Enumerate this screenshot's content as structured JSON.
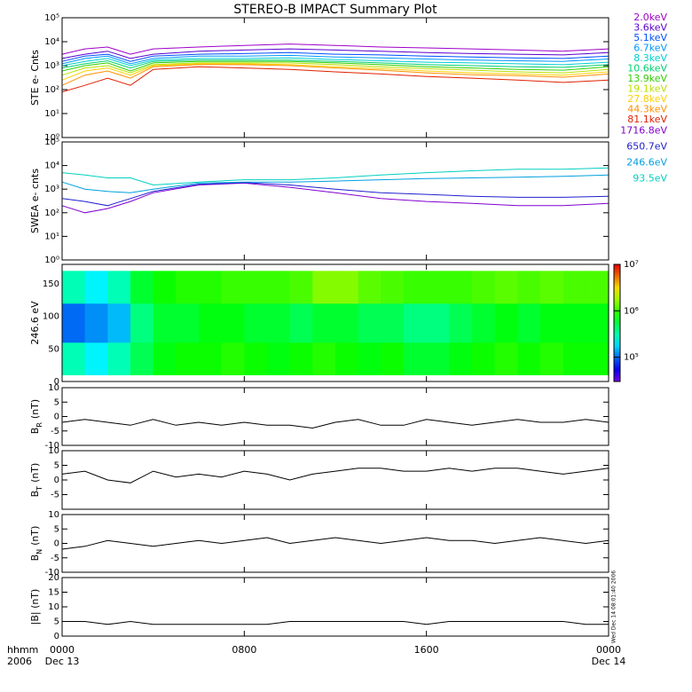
{
  "title": "STEREO-B IMPACT Summary Plot",
  "stamp": "Wed Dec 14 08:01:40 2006",
  "x_axis": {
    "label": "hhmm",
    "year": "2006",
    "xlim": [
      0,
      24
    ],
    "xticks": [
      {
        "value": 0,
        "label": "0000"
      },
      {
        "value": 8,
        "label": "0800"
      },
      {
        "value": 16,
        "label": "1600"
      },
      {
        "value": 24,
        "label": "0000"
      }
    ],
    "dates": [
      {
        "value": 0,
        "label": "Dec 13"
      },
      {
        "value": 24,
        "label": "Dec 14"
      }
    ]
  },
  "chart_data": [
    {
      "type": "line",
      "log_scale": true,
      "ylabel": "STE e- Cnts",
      "ylim": [
        1,
        100000
      ],
      "yticks": [
        {
          "value": 1,
          "label": "10⁰"
        },
        {
          "value": 10,
          "label": "10¹"
        },
        {
          "value": 100,
          "label": "10²"
        },
        {
          "value": 1000,
          "label": "10³"
        },
        {
          "value": 10000,
          "label": "10⁴"
        },
        {
          "value": 100000,
          "label": "10⁵"
        }
      ],
      "x": [
        0,
        1,
        2,
        3,
        4,
        6,
        8,
        10,
        12,
        14,
        16,
        18,
        20,
        22,
        24
      ],
      "series": [
        {
          "name": "2.0keV",
          "color": "#a000c8",
          "values": [
            3000,
            5000,
            6000,
            3000,
            5000,
            6000,
            7000,
            8000,
            7000,
            6000,
            5500,
            5000,
            4500,
            4000,
            5000
          ]
        },
        {
          "name": "3.6keV",
          "color": "#5a00d0",
          "values": [
            2000,
            3000,
            4000,
            2000,
            3000,
            4000,
            4500,
            5000,
            4500,
            4000,
            3500,
            3200,
            3000,
            2800,
            3500
          ]
        },
        {
          "name": "5.1keV",
          "color": "#0050ff",
          "values": [
            1500,
            2500,
            3000,
            1500,
            2500,
            3000,
            3200,
            3500,
            3000,
            2800,
            2500,
            2300,
            2100,
            2000,
            2500
          ]
        },
        {
          "name": "6.7keV",
          "color": "#0098ff",
          "values": [
            1200,
            2000,
            2500,
            1200,
            2000,
            2500,
            2500,
            2700,
            2300,
            2100,
            1900,
            1700,
            1600,
            1500,
            1900
          ]
        },
        {
          "name": "8.3keV",
          "color": "#00d0d0",
          "values": [
            1000,
            1500,
            2000,
            1000,
            1700,
            2000,
            2000,
            2100,
            1800,
            1600,
            1400,
            1300,
            1200,
            1100,
            1400
          ]
        },
        {
          "name": "10.6keV",
          "color": "#00d070",
          "values": [
            800,
            1200,
            1600,
            800,
            1500,
            1700,
            1700,
            1700,
            1500,
            1300,
            1100,
            1000,
            900,
            850,
            1100
          ]
        },
        {
          "name": "13.9keV",
          "color": "#30d000",
          "values": [
            600,
            1000,
            1300,
            600,
            1300,
            1500,
            1500,
            1500,
            1300,
            1100,
            900,
            800,
            700,
            650,
            900
          ]
        },
        {
          "name": "19.1keV",
          "color": "#b8e000",
          "values": [
            400,
            800,
            1000,
            500,
            1100,
            1300,
            1300,
            1300,
            1100,
            900,
            750,
            650,
            550,
            500,
            700
          ]
        },
        {
          "name": "27.8keV",
          "color": "#ffd000",
          "values": [
            250,
            600,
            800,
            400,
            1000,
            1200,
            1200,
            1100,
            900,
            750,
            600,
            500,
            450,
            400,
            550
          ]
        },
        {
          "name": "44.3keV",
          "color": "#ff9000",
          "values": [
            150,
            400,
            600,
            300,
            900,
            1100,
            1100,
            1000,
            800,
            650,
            500,
            420,
            380,
            330,
            450
          ]
        },
        {
          "name": "81.1keV",
          "color": "#e02000",
          "values": [
            80,
            150,
            300,
            150,
            700,
            900,
            800,
            700,
            550,
            450,
            350,
            300,
            250,
            200,
            250
          ]
        }
      ]
    },
    {
      "type": "line",
      "log_scale": true,
      "ylabel": "SWEA e- cnts",
      "ylim": [
        1,
        100000
      ],
      "yticks": [
        {
          "value": 1,
          "label": "10⁰"
        },
        {
          "value": 10,
          "label": "10¹"
        },
        {
          "value": 100,
          "label": "10²"
        },
        {
          "value": 1000,
          "label": "10³"
        },
        {
          "value": 10000,
          "label": "10⁴"
        },
        {
          "value": 100000,
          "label": "10⁵"
        }
      ],
      "x": [
        0,
        1,
        2,
        3,
        4,
        6,
        8,
        10,
        12,
        14,
        16,
        18,
        20,
        22,
        24
      ],
      "series": [
        {
          "name": "1716.8eV",
          "color": "#8000d0",
          "values": [
            200,
            100,
            150,
            300,
            700,
            1500,
            1800,
            1200,
            700,
            400,
            300,
            250,
            200,
            200,
            250
          ]
        },
        {
          "name": "650.7eV",
          "color": "#2020d0",
          "values": [
            400,
            300,
            200,
            400,
            800,
            1600,
            1900,
            1500,
            1000,
            700,
            600,
            500,
            450,
            450,
            500
          ]
        },
        {
          "name": "246.6eV",
          "color": "#00a0e0",
          "values": [
            2000,
            1000,
            800,
            700,
            1000,
            1800,
            2000,
            2000,
            2200,
            2500,
            2800,
            3000,
            3200,
            3500,
            4000
          ]
        },
        {
          "name": "93.5eV",
          "color": "#00d0c0",
          "values": [
            5000,
            4000,
            3000,
            3000,
            1500,
            2000,
            2500,
            2500,
            3000,
            4000,
            5000,
            6000,
            7000,
            7000,
            8000
          ]
        }
      ]
    },
    {
      "type": "heatmap",
      "ylabel": "246.6 eV",
      "ylim": [
        0,
        180
      ],
      "yticks": [
        0,
        50,
        100,
        150
      ],
      "x_bins": [
        0,
        1,
        2,
        3,
        4,
        5,
        6,
        7,
        8,
        9,
        10,
        11,
        12,
        13,
        14,
        15,
        16,
        17,
        18,
        19,
        20,
        21,
        22,
        23,
        24
      ],
      "y_bins": [
        10,
        60,
        120,
        170
      ],
      "values": [
        [
          300000,
          200000,
          300000,
          500000,
          700000,
          800000,
          800000,
          900000,
          800000,
          700000,
          800000,
          900000,
          800000,
          700000,
          800000,
          600000,
          600000,
          700000,
          800000,
          900000,
          800000,
          900000,
          800000,
          800000
        ],
        [
          100000,
          120000,
          150000,
          400000,
          600000,
          600000,
          700000,
          700000,
          600000,
          600000,
          500000,
          600000,
          600000,
          500000,
          500000,
          400000,
          400000,
          500000,
          600000,
          700000,
          600000,
          700000,
          700000,
          700000
        ],
        [
          300000,
          200000,
          300000,
          600000,
          800000,
          900000,
          900000,
          1000000,
          1000000,
          1000000,
          1100000,
          1500000,
          1500000,
          1200000,
          1100000,
          1000000,
          1000000,
          1000000,
          1100000,
          1200000,
          1100000,
          1200000,
          1100000,
          1100000
        ]
      ],
      "clim": [
        30000,
        10000000
      ],
      "cticks": [
        {
          "value": 100000,
          "label": "10⁵"
        },
        {
          "value": 1000000,
          "label": "10⁶"
        },
        {
          "value": 10000000,
          "label": "10⁷"
        }
      ]
    },
    {
      "type": "line",
      "ylabel": "B",
      "ylabel_sub": "R",
      "ylabel_unit": "(nT)",
      "ylim": [
        -10,
        10
      ],
      "yticks": [
        -10,
        -5,
        0,
        5,
        10
      ],
      "x": [
        0,
        1,
        2,
        3,
        4,
        5,
        6,
        7,
        8,
        9,
        10,
        11,
        12,
        13,
        14,
        15,
        16,
        17,
        18,
        19,
        20,
        21,
        22,
        23,
        24
      ],
      "series": [
        {
          "color": "#000000",
          "values": [
            -2,
            -1,
            -2,
            -3,
            -1,
            -3,
            -2,
            -3,
            -2,
            -3,
            -3,
            -4,
            -2,
            -1,
            -3,
            -3,
            -1,
            -2,
            -3,
            -2,
            -1,
            -2,
            -2,
            -1,
            -2
          ]
        }
      ]
    },
    {
      "type": "line",
      "ylabel": "B",
      "ylabel_sub": "T",
      "ylabel_unit": "(nT)",
      "ylim": [
        -10,
        10
      ],
      "yticks": [
        -5,
        0,
        5,
        10
      ],
      "x": [
        0,
        1,
        2,
        3,
        4,
        5,
        6,
        7,
        8,
        9,
        10,
        11,
        12,
        13,
        14,
        15,
        16,
        17,
        18,
        19,
        20,
        21,
        22,
        23,
        24
      ],
      "series": [
        {
          "color": "#000000",
          "values": [
            2,
            3,
            0,
            -1,
            3,
            1,
            2,
            1,
            3,
            2,
            0,
            2,
            3,
            4,
            4,
            3,
            3,
            4,
            3,
            4,
            4,
            3,
            2,
            3,
            4
          ]
        }
      ]
    },
    {
      "type": "line",
      "ylabel": "B",
      "ylabel_sub": "N",
      "ylabel_unit": "(nT)",
      "ylim": [
        -10,
        10
      ],
      "yticks": [
        -10,
        -5,
        0,
        5,
        10
      ],
      "x": [
        0,
        1,
        2,
        3,
        4,
        5,
        6,
        7,
        8,
        9,
        10,
        11,
        12,
        13,
        14,
        15,
        16,
        17,
        18,
        19,
        20,
        21,
        22,
        23,
        24
      ],
      "series": [
        {
          "color": "#000000",
          "values": [
            -2,
            -1,
            1,
            0,
            -1,
            0,
            1,
            0,
            1,
            2,
            0,
            1,
            2,
            1,
            0,
            1,
            2,
            1,
            1,
            0,
            1,
            2,
            1,
            0,
            1
          ]
        }
      ]
    },
    {
      "type": "line",
      "ylabel": "|B| (nT)",
      "ylim": [
        0,
        20
      ],
      "yticks": [
        0,
        5,
        10,
        15,
        20
      ],
      "x": [
        0,
        1,
        2,
        3,
        4,
        5,
        6,
        7,
        8,
        9,
        10,
        11,
        12,
        13,
        14,
        15,
        16,
        17,
        18,
        19,
        20,
        21,
        22,
        23,
        24
      ],
      "series": [
        {
          "color": "#000000",
          "values": [
            5,
            5,
            4,
            5,
            4,
            4,
            4,
            4,
            4,
            4,
            5,
            5,
            5,
            5,
            5,
            5,
            4,
            5,
            5,
            5,
            5,
            5,
            5,
            4,
            4
          ]
        }
      ]
    }
  ]
}
